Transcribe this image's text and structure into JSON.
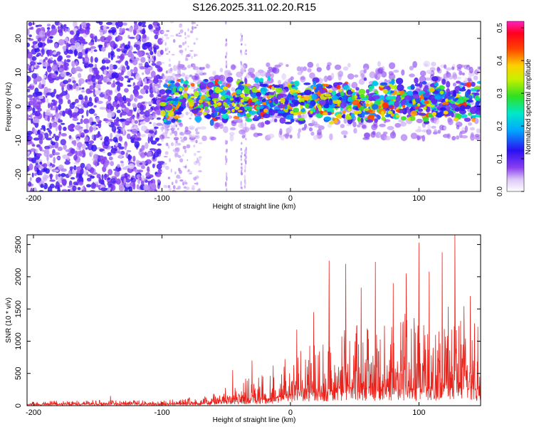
{
  "figure_title": "S126.2025.311.02.20.R15",
  "chart_data": [
    {
      "type": "heatmap",
      "xlabel": "Height of straight line (km)",
      "ylabel": "Frequency (Hz)",
      "xlim": [
        -205,
        148
      ],
      "ylim": [
        -25,
        25
      ],
      "xticks": [
        -200,
        -100,
        0,
        100
      ],
      "xtick_labels": [
        "-200",
        "-100",
        "0",
        "100"
      ],
      "yticks": [
        -20,
        -10,
        0,
        10,
        20
      ],
      "ytick_labels": [
        "-20",
        "-10",
        "0",
        "10",
        "20"
      ],
      "colorbar": {
        "label": "Normalized spectral amplitude",
        "range": [
          0.0,
          0.52
        ],
        "ticks": [
          0.0,
          0.1,
          0.2,
          0.3,
          0.4,
          0.5
        ],
        "tick_labels": [
          "0.0",
          "0.1",
          "0.2",
          "0.3",
          "0.4",
          "0.5"
        ],
        "colormap": "rainbow (white-violet-blue-cyan-green-yellow-orange-red-magenta)"
      },
      "regions": [
        {
          "name": "broadband noise",
          "x_range": [
            -205,
            -100
          ],
          "freq_range": [
            -25,
            25
          ],
          "amplitude_range": [
            0.05,
            0.12
          ]
        },
        {
          "name": "signal band",
          "x_range": [
            -100,
            148
          ],
          "freq_center": 1.5,
          "freq_halfwidth": 7,
          "amplitude_range": [
            0.08,
            0.45
          ]
        },
        {
          "name": "vertical streaks",
          "x_values": [
            -50,
            -38,
            -35
          ],
          "freq_range": [
            -25,
            25
          ],
          "amplitude_range": [
            0.03,
            0.06
          ]
        }
      ]
    },
    {
      "type": "line",
      "xlabel": "Height of straight line (km)",
      "ylabel": "SNR (10 * v/v)",
      "xlim": [
        -205,
        148
      ],
      "ylim": [
        0,
        2650
      ],
      "xticks": [
        -200,
        -100,
        0,
        100
      ],
      "xtick_labels": [
        "-200",
        "-100",
        "0",
        "100"
      ],
      "yticks": [
        0,
        500,
        1000,
        1500,
        2000,
        2500
      ],
      "ytick_labels": [
        "0",
        "500",
        "1000",
        "1500",
        "2000",
        "2500"
      ],
      "color": "#e8221b",
      "envelope": {
        "x": [
          -205,
          -150,
          -100,
          -80,
          -60,
          -40,
          -20,
          0,
          20,
          40,
          60,
          80,
          100,
          120,
          148
        ],
        "baseline": [
          15,
          20,
          20,
          25,
          40,
          60,
          90,
          150,
          200,
          250,
          250,
          250,
          250,
          250,
          250
        ],
        "typical_peak": [
          70,
          90,
          80,
          130,
          200,
          400,
          550,
          800,
          1000,
          1200,
          1300,
          1400,
          1500,
          1600,
          1500
        ]
      },
      "spikes": [
        {
          "x": -140,
          "y": 150
        },
        {
          "x": -45,
          "y": 550
        },
        {
          "x": -30,
          "y": 700
        },
        {
          "x": 5,
          "y": 1180
        },
        {
          "x": 18,
          "y": 1450
        },
        {
          "x": 30,
          "y": 2250
        },
        {
          "x": 43,
          "y": 2200
        },
        {
          "x": 55,
          "y": 1830
        },
        {
          "x": 66,
          "y": 2230
        },
        {
          "x": 80,
          "y": 1900
        },
        {
          "x": 90,
          "y": 2050
        },
        {
          "x": 100,
          "y": 2530
        },
        {
          "x": 108,
          "y": 2080
        },
        {
          "x": 118,
          "y": 2380
        },
        {
          "x": 128,
          "y": 2650
        },
        {
          "x": 140,
          "y": 1700
        }
      ]
    }
  ]
}
